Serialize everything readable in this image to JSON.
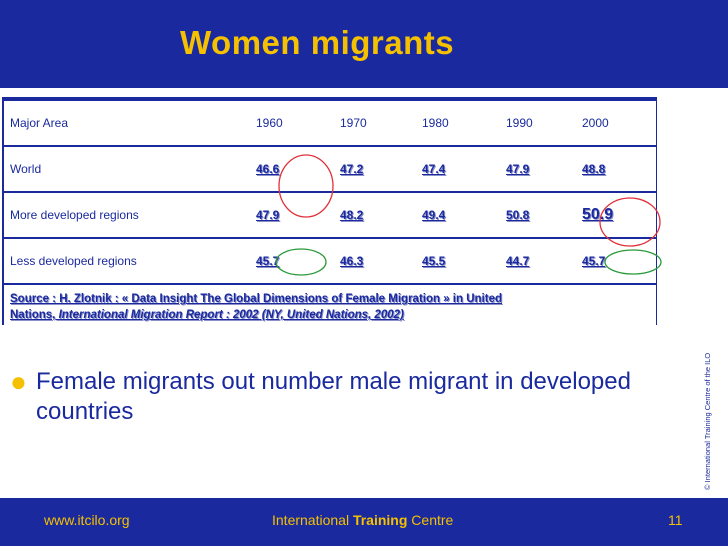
{
  "slide": {
    "title": "Women migrants",
    "bullet": "Female migrants out number male migrant in developed countries",
    "copyright": "© International Training Centre of the ILO"
  },
  "table": {
    "headers": [
      "Major Area",
      "1960",
      "1970",
      "1980",
      "1990",
      "2000"
    ],
    "rows": [
      {
        "area": "World",
        "values": [
          "46.6",
          "47.2",
          "47.4",
          "47.9",
          "48.8"
        ]
      },
      {
        "area": "More developed regions",
        "values": [
          "47.9",
          "48.2",
          "49.4",
          "50.8",
          "50.9"
        ]
      },
      {
        "area": "Less developed regions",
        "values": [
          "45.7",
          "46.3",
          "45.5",
          "44.7",
          "45.7"
        ]
      }
    ],
    "source_line1": "Source : H. Zlotnik : « Data Insight The Global Dimensions of Female Migration » in United",
    "source_line2_prefix": "Nations, ",
    "source_line2_italic": "International Migration Report : 2002 (NY, United Nations, 2002)"
  },
  "footer": {
    "url": "www.itcilo.org",
    "centre_prefix": "International ",
    "centre_bold": "Training",
    "centre_suffix": " Centre",
    "page_number": "11"
  },
  "colors": {
    "navy": "#1a2a9e",
    "gold": "#f5c000",
    "annotation_red": "#e0303a",
    "annotation_green": "#2a9a3a"
  }
}
